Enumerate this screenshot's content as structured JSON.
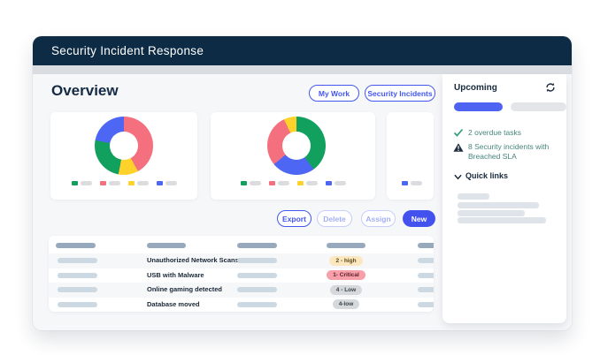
{
  "window": {
    "title": "Security Incident Response"
  },
  "page": {
    "heading": "Overview"
  },
  "top_buttons": {
    "my_work": "My Work",
    "security_incidents": "Security Incidents"
  },
  "action_buttons": {
    "export": "Export",
    "delete": "Delete",
    "assign": "Assign",
    "new": "New"
  },
  "colors": {
    "header_navy": "#0e2b45",
    "accent_blue": "#4356ef",
    "new_button_fill": "#4352ee",
    "sidebar_teal_text": "#45857c",
    "donut_green": "#12a05f",
    "donut_pink": "#f4707f",
    "donut_yellow": "#ffd12b",
    "donut_blue": "#4d66f3",
    "badge_high_bg": "#fce8c0",
    "badge_critical_bg": "#f8a0aa",
    "badge_low_bg": "#d6d9dc"
  },
  "chart_data": [
    {
      "type": "pie",
      "title": "",
      "donut": true,
      "legend_position": "bottom",
      "segments": [
        {
          "name": "pink",
          "value": 42,
          "color": "#f4707f"
        },
        {
          "name": "yellow",
          "value": 11,
          "color": "#ffd12b"
        },
        {
          "name": "green",
          "value": 25,
          "color": "#12a05f"
        },
        {
          "name": "blue",
          "value": 22,
          "color": "#4d66f3"
        }
      ],
      "legend_swatches": [
        "#12a05f",
        "#f4707f",
        "#ffd12b",
        "#4d66f3"
      ]
    },
    {
      "type": "pie",
      "title": "",
      "donut": true,
      "legend_position": "bottom",
      "segments": [
        {
          "name": "green",
          "value": 40,
          "color": "#12a05f"
        },
        {
          "name": "blue",
          "value": 24,
          "color": "#4d66f3"
        },
        {
          "name": "pink",
          "value": 29,
          "color": "#f4707f"
        },
        {
          "name": "yellow",
          "value": 7,
          "color": "#ffd12b"
        }
      ],
      "legend_swatches": [
        "#12a05f",
        "#f4707f",
        "#ffd12b",
        "#4d66f3"
      ]
    },
    {
      "type": "pie",
      "title": "",
      "donut": true,
      "note": "card mostly cropped; only one legend item visible",
      "segments": [],
      "legend_swatches": [
        "#4d66f3"
      ]
    }
  ],
  "sidebar": {
    "title": "Upcoming",
    "items": [
      {
        "icon": "check",
        "text": "2 overdue tasks"
      },
      {
        "icon": "warning",
        "text": "8 Security incidents with Breached SLA"
      }
    ],
    "quick_links_label": "Quick links"
  },
  "table": {
    "rows": [
      {
        "name": "Unauthorized Network Scans",
        "badge": "2 - high",
        "severity": "high"
      },
      {
        "name": "USB with Malware",
        "badge": "1- Critical",
        "severity": "critical"
      },
      {
        "name": "Online gaming detected",
        "badge": "4 - Low",
        "severity": "low"
      },
      {
        "name": "Database moved",
        "badge": "4-low",
        "severity": "low"
      }
    ]
  }
}
